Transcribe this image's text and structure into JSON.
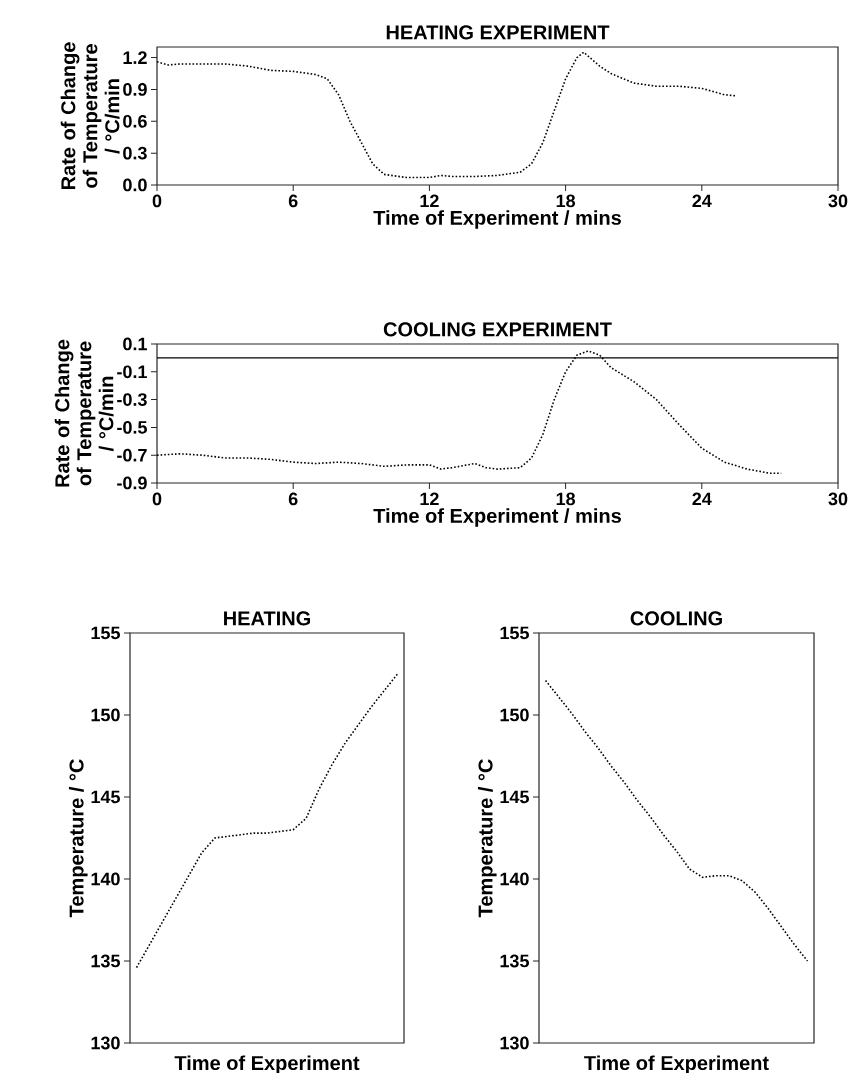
{
  "chart_data": [
    {
      "type": "line",
      "title": "HEATING EXPERIMENT",
      "xlabel": "Time of Experiment / mins",
      "ylabel": "Rate of Change of Temperature / °C/min",
      "line_style": "dotted",
      "x": [
        0,
        0.5,
        1,
        2,
        3,
        4,
        5,
        6,
        7,
        7.5,
        8,
        8.5,
        9,
        9.5,
        10,
        11,
        12,
        12.5,
        13,
        14,
        15,
        16,
        16.5,
        17,
        17.5,
        18,
        18.5,
        18.8,
        19.5,
        20,
        21,
        22,
        23,
        24,
        25,
        25.5
      ],
      "series": [
        {
          "color": "#000000",
          "values": [
            1.16,
            1.13,
            1.14,
            1.14,
            1.14,
            1.12,
            1.08,
            1.07,
            1.04,
            1.0,
            0.85,
            0.6,
            0.4,
            0.2,
            0.1,
            0.07,
            0.07,
            0.09,
            0.08,
            0.08,
            0.09,
            0.12,
            0.2,
            0.4,
            0.7,
            1.0,
            1.2,
            1.25,
            1.12,
            1.05,
            0.96,
            0.93,
            0.93,
            0.91,
            0.85,
            0.84
          ]
        }
      ],
      "xlim": [
        0,
        30
      ],
      "xticks": [
        0,
        6,
        12,
        18,
        24,
        30
      ],
      "ylim": [
        0,
        1.3
      ],
      "yticks": [
        {
          "value": 0,
          "label": "0.0"
        },
        0.3,
        0.6,
        0.9,
        1.2
      ]
    },
    {
      "type": "line",
      "title": "COOLING EXPERIMENT",
      "xlabel": "Time of Experiment / mins",
      "ylabel": "Rate of Change of Temperature / °C/min",
      "line_style": "dotted",
      "x": [
        0,
        1,
        2,
        3,
        4,
        5,
        6,
        7,
        8,
        9,
        10,
        11,
        12,
        12.5,
        13,
        14,
        14.5,
        15,
        16,
        16.5,
        17,
        17.5,
        18,
        18.5,
        19,
        19.5,
        20,
        21,
        22,
        23,
        24,
        25,
        26,
        27,
        27.5
      ],
      "series": [
        {
          "color": "#000000",
          "values": [
            -0.7,
            -0.69,
            -0.7,
            -0.72,
            -0.72,
            -0.73,
            -0.75,
            -0.76,
            -0.75,
            -0.76,
            -0.78,
            -0.77,
            -0.77,
            -0.8,
            -0.79,
            -0.76,
            -0.79,
            -0.8,
            -0.79,
            -0.72,
            -0.55,
            -0.3,
            -0.1,
            0.02,
            0.05,
            0.02,
            -0.07,
            -0.17,
            -0.3,
            -0.48,
            -0.65,
            -0.75,
            -0.8,
            -0.83,
            -0.83
          ]
        }
      ],
      "xlim": [
        0,
        30
      ],
      "xticks": [
        0,
        6,
        12,
        18,
        24,
        30
      ],
      "ylim": [
        -0.9,
        0.1
      ],
      "yticks": [
        -0.9,
        -0.7,
        -0.5,
        -0.3,
        -0.1,
        0.1
      ],
      "ref_lines": [
        {
          "axis": "y",
          "value": 0,
          "color": "#000000"
        }
      ]
    },
    {
      "type": "line",
      "title": "HEATING",
      "xlabel": "Time of Experiment",
      "ylabel": "Temperature / °C",
      "line_style": "dotted",
      "tick_labels": "y",
      "categories": [
        null,
        null,
        null,
        null,
        null,
        null,
        null,
        null,
        null,
        null,
        null,
        null,
        null,
        null,
        null,
        null,
        null,
        null,
        null,
        null,
        null
      ],
      "series": [
        {
          "color": "#000000",
          "values": [
            134.6,
            136.0,
            137.4,
            138.8,
            140.2,
            141.6,
            142.5,
            142.6,
            142.7,
            142.8,
            142.8,
            142.9,
            143.0,
            143.7,
            145.5,
            147.0,
            148.3,
            149.4,
            150.5,
            151.5,
            152.5
          ]
        }
      ],
      "ylim": [
        130,
        155
      ],
      "yticks": [
        130,
        135,
        140,
        145,
        150,
        155
      ]
    },
    {
      "type": "line",
      "title": "COOLING",
      "xlabel": "Time of Experiment",
      "ylabel": "Temperature / °C",
      "line_style": "dotted",
      "tick_labels": "y",
      "categories": [
        null,
        null,
        null,
        null,
        null,
        null,
        null,
        null,
        null,
        null,
        null,
        null,
        null,
        null,
        null,
        null,
        null,
        null,
        null,
        null,
        null
      ],
      "series": [
        {
          "color": "#000000",
          "values": [
            152.1,
            151.1,
            150.1,
            149.0,
            148.0,
            146.9,
            145.9,
            144.8,
            143.8,
            142.7,
            141.7,
            140.6,
            140.1,
            140.2,
            140.2,
            139.9,
            139.2,
            138.2,
            137.1,
            136.0,
            135.0
          ]
        }
      ],
      "ylim": [
        130,
        155
      ],
      "yticks": [
        130,
        135,
        140,
        145,
        150,
        155
      ]
    }
  ]
}
